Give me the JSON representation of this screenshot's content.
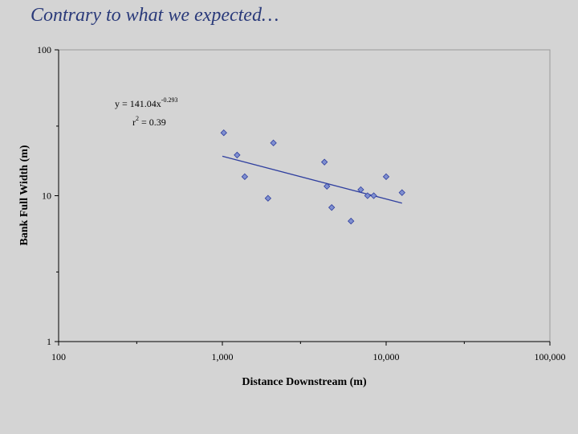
{
  "slide": {
    "title": "Contrary to what we expected…"
  },
  "chart_data": {
    "type": "scatter",
    "title": "",
    "xlabel": "Distance Downstream (m)",
    "ylabel": "Bank Full Width (m)",
    "x_scale": "log",
    "y_scale": "log",
    "xlim": [
      100,
      100000
    ],
    "ylim": [
      1,
      100
    ],
    "x_ticks": [
      {
        "value": 100,
        "label": "100"
      },
      {
        "value": 1000,
        "label": "1,000"
      },
      {
        "value": 10000,
        "label": "10,000"
      },
      {
        "value": 100000,
        "label": "100,000"
      }
    ],
    "y_ticks": [
      {
        "value": 1,
        "label": "1"
      },
      {
        "value": 10,
        "label": "10"
      },
      {
        "value": 100,
        "label": "100"
      }
    ],
    "grid": false,
    "legend": "none",
    "marker_color": "#7f8fd0",
    "line_color": "#2f3f9f",
    "points": [
      {
        "x": 1020,
        "y": 27
      },
      {
        "x": 1230,
        "y": 19
      },
      {
        "x": 1370,
        "y": 13.5
      },
      {
        "x": 1900,
        "y": 9.6
      },
      {
        "x": 2050,
        "y": 23
      },
      {
        "x": 4200,
        "y": 17
      },
      {
        "x": 4350,
        "y": 11.6
      },
      {
        "x": 4650,
        "y": 8.3
      },
      {
        "x": 6100,
        "y": 6.7
      },
      {
        "x": 7000,
        "y": 11
      },
      {
        "x": 7700,
        "y": 10
      },
      {
        "x": 8400,
        "y": 10
      },
      {
        "x": 10000,
        "y": 13.5
      },
      {
        "x": 12500,
        "y": 10.5
      }
    ],
    "trendline": {
      "type": "power",
      "coefficient": 141.04,
      "exponent": -0.293,
      "x_range": [
        1000,
        12500
      ],
      "equation_text": "y = 141.04x",
      "exponent_text": "-0.293",
      "r2_prefix": "r",
      "r2_sup": "2",
      "r2_text": " = 0.39"
    }
  }
}
